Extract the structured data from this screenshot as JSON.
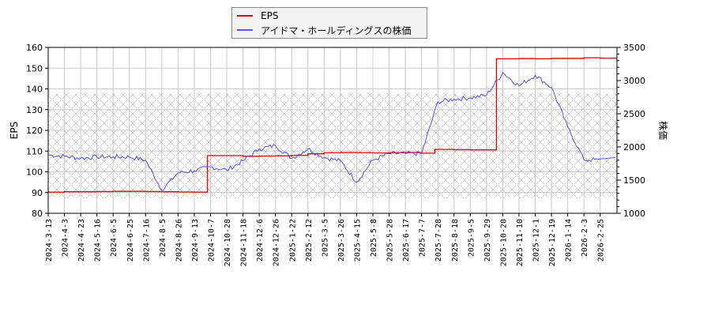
{
  "legend": {
    "items": [
      {
        "label": "EPS",
        "color": "#e00000"
      },
      {
        "label": "アイドマ・ホールディングスの株価",
        "color": "#4444dd"
      }
    ]
  },
  "axes": {
    "left_label": "EPS",
    "right_label": "株価",
    "left_ticks": [
      "80",
      "90",
      "100",
      "110",
      "120",
      "130",
      "140",
      "150",
      "160"
    ],
    "right_ticks": [
      "1000",
      "1500",
      "2000",
      "2500",
      "3000",
      "3500"
    ],
    "x_ticks": [
      "2024-3-13",
      "2024-4-3",
      "2024-4-23",
      "2024-5-16",
      "2024-6-5",
      "2024-6-25",
      "2024-7-16",
      "2024-8-5",
      "2024-8-26",
      "2024-9-13",
      "2024-10-7",
      "2024-10-28",
      "2024-11-18",
      "2024-12-6",
      "2024-12-26",
      "2025-1-22",
      "2025-2-12",
      "2025-3-5",
      "2025-3-26",
      "2025-4-15",
      "2025-5-8",
      "2025-5-28",
      "2025-6-17",
      "2025-7-7",
      "2025-7-28",
      "2025-8-18",
      "2025-9-5",
      "2025-9-29",
      "2025-10-20",
      "2025-11-10",
      "2025-12-1",
      "2025-12-19",
      "2026-1-14",
      "2026-2-3",
      "2026-2-25"
    ]
  },
  "chart_data": {
    "type": "line",
    "title": "",
    "xlabel": "",
    "ylabel": "EPS",
    "y2label": "株価",
    "ylim": [
      80,
      160
    ],
    "y2lim": [
      1000,
      3500
    ],
    "grid": true,
    "legend_position": "top-center",
    "shaded_band_y2": [
      1226,
      2810
    ],
    "x": [
      "2024-3-13",
      "2024-4-3",
      "2024-4-23",
      "2024-5-16",
      "2024-6-5",
      "2024-6-25",
      "2024-7-16",
      "2024-8-5",
      "2024-8-26",
      "2024-9-13",
      "2024-10-7",
      "2024-10-28",
      "2024-11-18",
      "2024-12-6",
      "2024-12-26",
      "2025-1-22",
      "2025-2-12",
      "2025-3-5",
      "2025-3-26",
      "2025-4-15",
      "2025-5-8",
      "2025-5-28",
      "2025-6-17",
      "2025-7-7",
      "2025-7-28",
      "2025-8-18",
      "2025-9-5",
      "2025-9-29",
      "2025-10-20",
      "2025-11-10",
      "2025-12-1",
      "2025-12-19",
      "2026-1-14",
      "2026-2-3",
      "2026-2-25"
    ],
    "series": [
      {
        "name": "EPS",
        "axis": "left",
        "color": "#e00000",
        "values": [
          90.2,
          90.4,
          90.4,
          90.5,
          90.6,
          90.6,
          90.5,
          90.4,
          90.3,
          90.2,
          107.8,
          107.8,
          107.5,
          107.6,
          107.7,
          107.9,
          108.7,
          109.2,
          109.3,
          109.2,
          109.1,
          109.2,
          109.3,
          109.0,
          110.8,
          110.7,
          110.6,
          110.6,
          154.5,
          154.6,
          154.5,
          154.7,
          154.7,
          155.0,
          154.8
        ]
      },
      {
        "name": "アイドマ・ホールディングスの株価",
        "axis": "right",
        "color": "#4444dd",
        "values": [
          1880,
          1860,
          1830,
          1850,
          1850,
          1850,
          1800,
          1350,
          1610,
          1640,
          1700,
          1650,
          1790,
          1970,
          2020,
          1830,
          1970,
          1840,
          1790,
          1470,
          1800,
          1900,
          1900,
          1900,
          2680,
          2720,
          2740,
          2780,
          3120,
          2920,
          3080,
          2900,
          2300,
          1810,
          1800
        ]
      }
    ]
  }
}
